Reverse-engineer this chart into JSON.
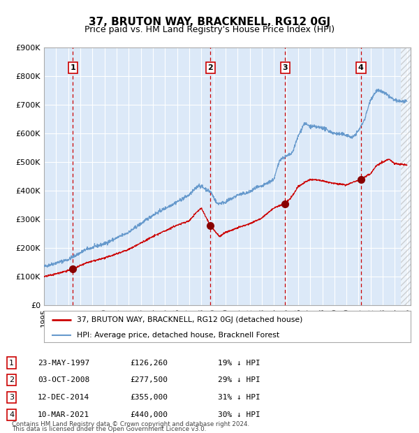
{
  "title": "37, BRUTON WAY, BRACKNELL, RG12 0GJ",
  "subtitle": "Price paid vs. HM Land Registry's House Price Index (HPI)",
  "footer1": "Contains HM Land Registry data © Crown copyright and database right 2024.",
  "footer2": "This data is licensed under the Open Government Licence v3.0.",
  "legend_red": "37, BRUTON WAY, BRACKNELL, RG12 0GJ (detached house)",
  "legend_blue": "HPI: Average price, detached house, Bracknell Forest",
  "purchases": [
    {
      "num": 1,
      "date": "23-MAY-1997",
      "price": 126260,
      "pct": "19% ↓ HPI",
      "x_year": 1997.38
    },
    {
      "num": 2,
      "date": "03-OCT-2008",
      "price": 277500,
      "pct": "29% ↓ HPI",
      "x_year": 2008.75
    },
    {
      "num": 3,
      "date": "12-DEC-2014",
      "price": 355000,
      "pct": "31% ↓ HPI",
      "x_year": 2014.94
    },
    {
      "num": 4,
      "date": "10-MAR-2021",
      "price": 440000,
      "pct": "30% ↓ HPI",
      "x_year": 2021.19
    }
  ],
  "price_labels": [
    "£126,260",
    "£277,500",
    "£355,000",
    "£440,000"
  ],
  "ylim": [
    0,
    900000
  ],
  "xlim_left": 1995.0,
  "xlim_right": 2025.3,
  "bg_color": "#dce9f8",
  "grid_color": "#ffffff",
  "red_line_color": "#cc0000",
  "blue_line_color": "#6699cc",
  "marker_color": "#880000",
  "hpi_key_x": [
    1995.0,
    1996.0,
    1997.0,
    1998.5,
    2000.0,
    2002.0,
    2004.0,
    2005.5,
    2007.0,
    2007.8,
    2008.8,
    2009.3,
    2010.0,
    2011.0,
    2012.0,
    2012.5,
    2013.0,
    2014.0,
    2014.5,
    2015.5,
    2016.0,
    2016.5,
    2017.0,
    2018.0,
    2019.0,
    2020.0,
    2020.5,
    2021.0,
    2021.5,
    2022.0,
    2022.5,
    2023.0,
    2024.0,
    2025.0
  ],
  "hpi_key_y": [
    135000,
    148000,
    160000,
    195000,
    215000,
    255000,
    315000,
    350000,
    385000,
    420000,
    395000,
    355000,
    360000,
    385000,
    395000,
    410000,
    415000,
    440000,
    510000,
    530000,
    590000,
    635000,
    625000,
    620000,
    600000,
    595000,
    585000,
    610000,
    650000,
    720000,
    750000,
    745000,
    715000,
    710000
  ],
  "red_key_x": [
    1995.0,
    1996.0,
    1997.38,
    1998.5,
    2000.0,
    2002.0,
    2004.0,
    2005.0,
    2006.0,
    2007.0,
    2007.5,
    2008.0,
    2008.75,
    2009.5,
    2010.0,
    2011.0,
    2012.0,
    2012.5,
    2013.0,
    2014.0,
    2014.94,
    2015.5,
    2016.0,
    2017.0,
    2018.0,
    2019.0,
    2020.0,
    2020.5,
    2021.19,
    2022.0,
    2022.5,
    2023.0,
    2023.5,
    2024.0,
    2025.0
  ],
  "red_key_y": [
    100000,
    110000,
    126260,
    148000,
    165000,
    195000,
    240000,
    260000,
    280000,
    295000,
    320000,
    340000,
    277500,
    240000,
    255000,
    270000,
    285000,
    295000,
    305000,
    340000,
    355000,
    380000,
    415000,
    440000,
    435000,
    425000,
    420000,
    430000,
    440000,
    460000,
    490000,
    500000,
    510000,
    495000,
    490000
  ],
  "hatch_x_start": 2024.5,
  "yticks": [
    0,
    100000,
    200000,
    300000,
    400000,
    500000,
    600000,
    700000,
    800000,
    900000
  ],
  "ylabels": [
    "£0",
    "£100K",
    "£200K",
    "£300K",
    "£400K",
    "£500K",
    "£600K",
    "£700K",
    "£800K",
    "£900K"
  ]
}
